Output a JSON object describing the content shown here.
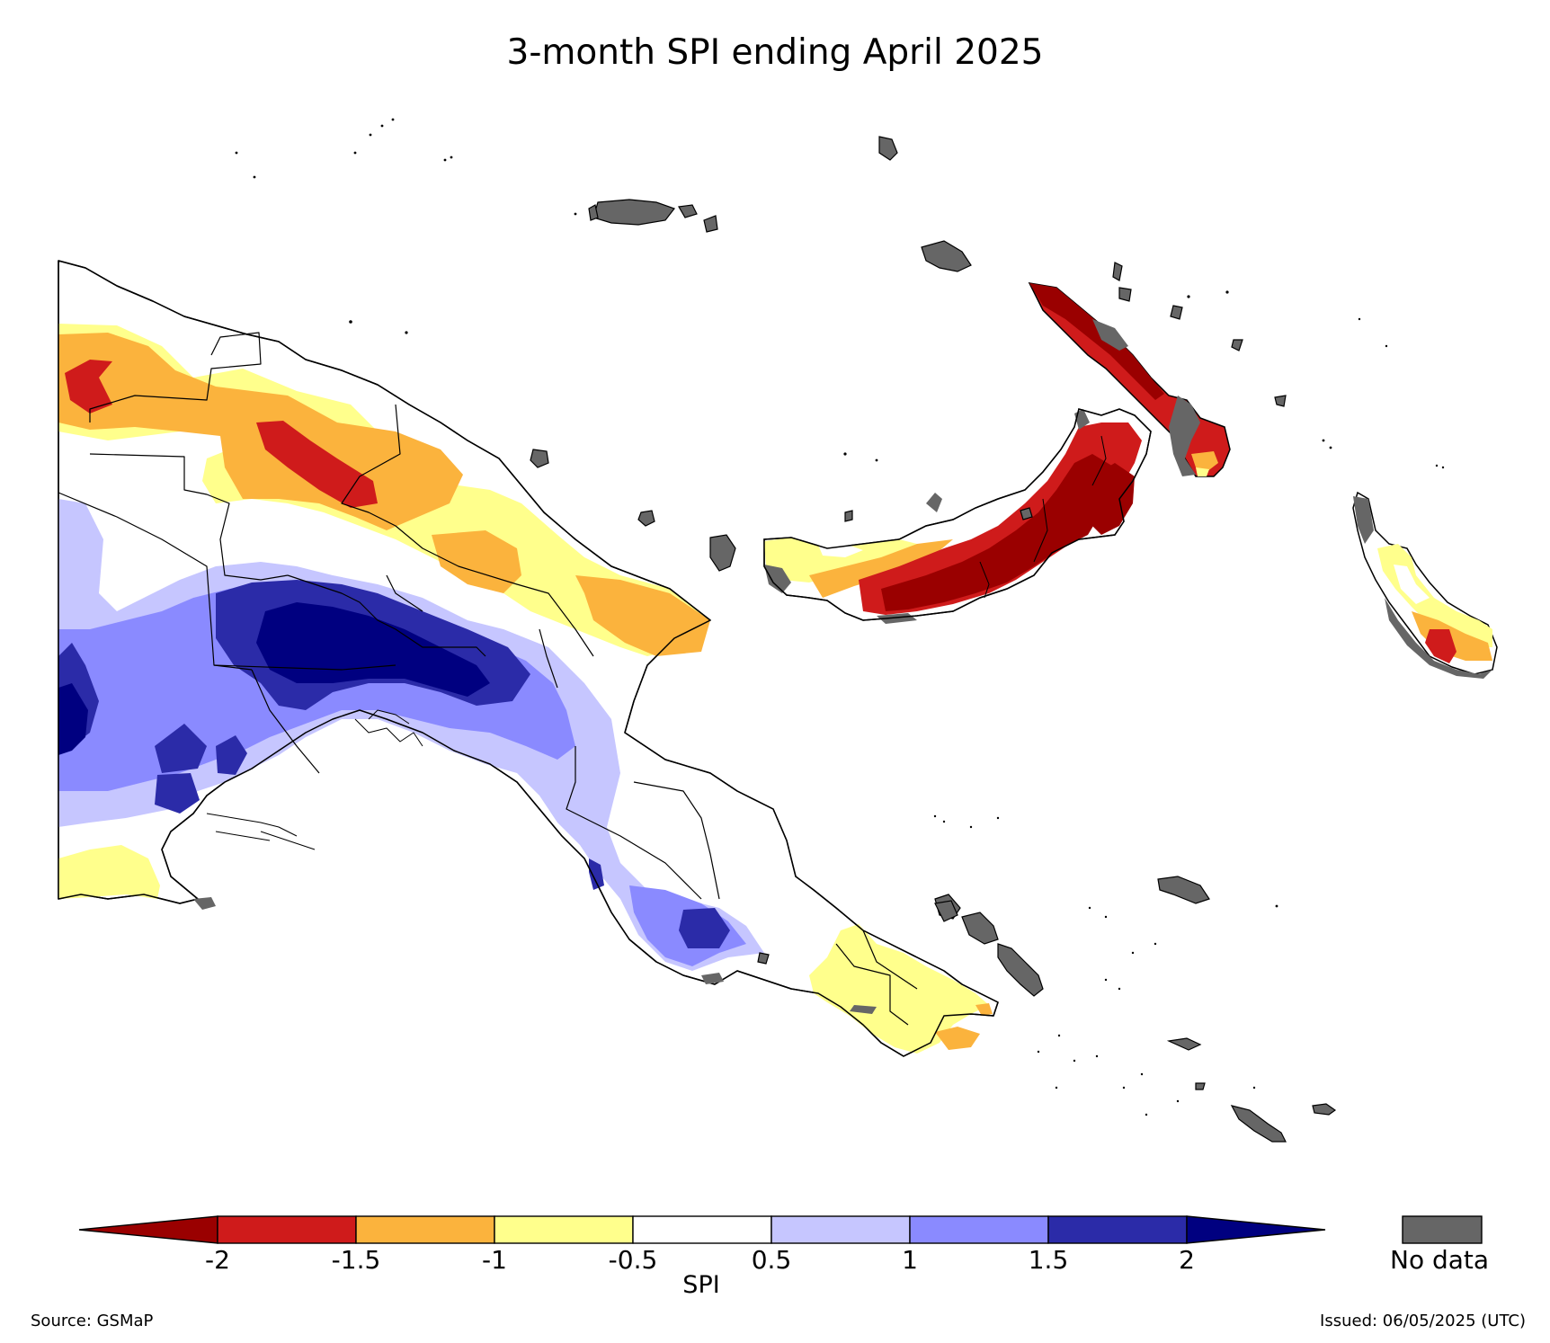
{
  "title": "3-month SPI ending April 2025",
  "colorbar": {
    "label": "SPI",
    "ticks": [
      "-2",
      "-1.5",
      "-1",
      "-0.5",
      "0.5",
      "1",
      "1.5",
      "2"
    ],
    "colors": [
      "#9a0000",
      "#cf1b1b",
      "#fbb33d",
      "#ffff8c",
      "#ffffff",
      "#c6c6ff",
      "#8a8aff",
      "#2b2ba8",
      "#000080"
    ],
    "no_data_label": "No data",
    "no_data_color": "#666666"
  },
  "source": "Source: GSMaP",
  "issued": "Issued: 06/05/2025 (UTC)"
}
